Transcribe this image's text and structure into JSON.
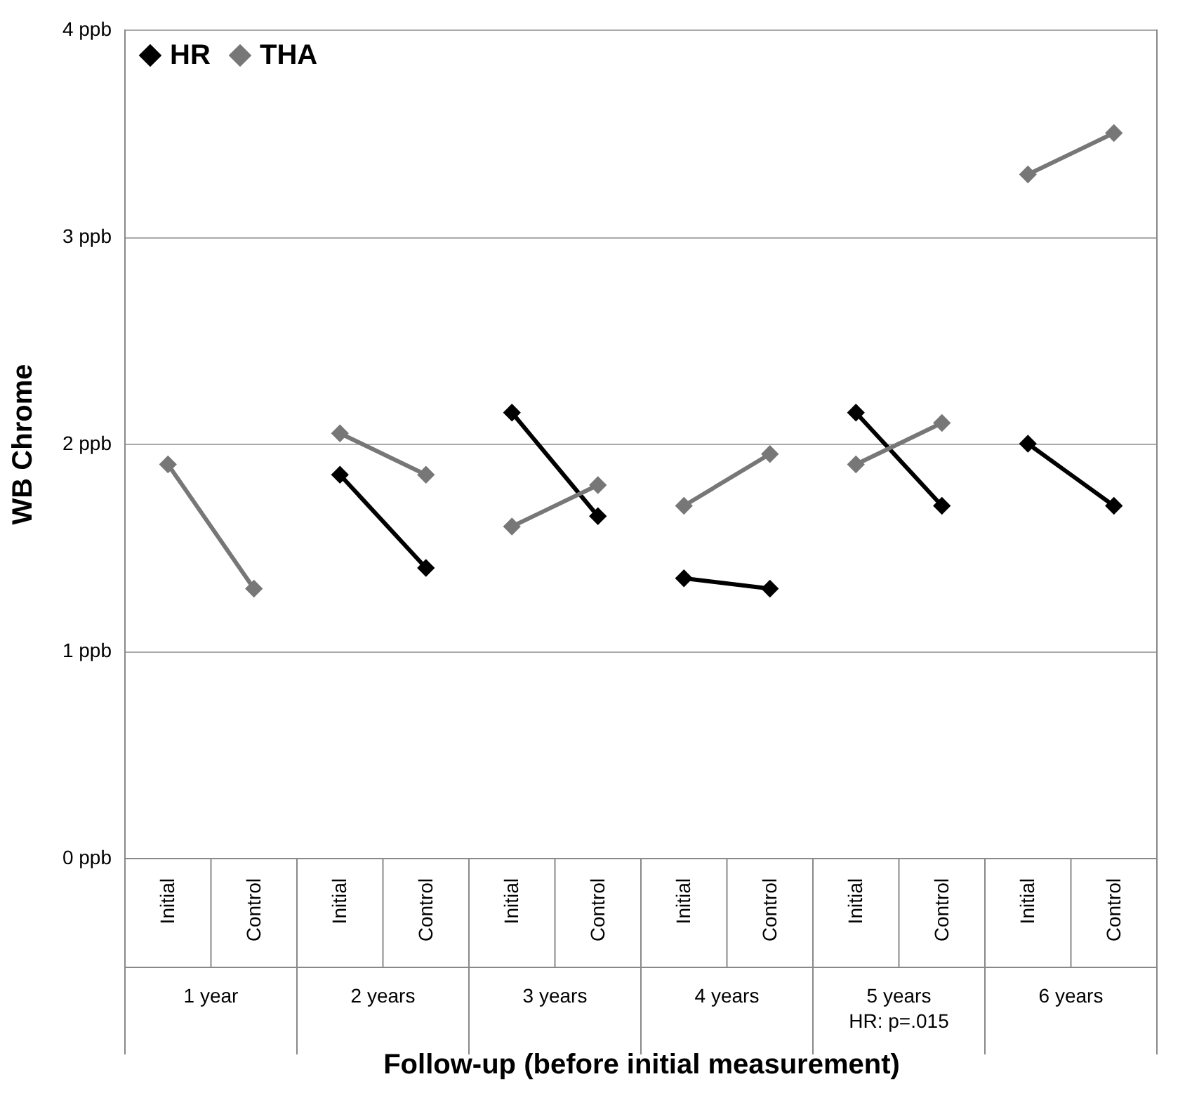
{
  "chart_data": {
    "type": "line",
    "xlabel": "Follow-up (before initial measurement)",
    "ylabel": "WB Chrome",
    "categories": [
      "Initial",
      "Control",
      "Initial",
      "Control",
      "Initial",
      "Control",
      "Initial",
      "Control",
      "Initial",
      "Control",
      "Initial",
      "Control"
    ],
    "series": [
      {
        "name": "HR",
        "color": "#000000",
        "values": [
          null,
          null,
          1.85,
          1.4,
          2.15,
          1.65,
          1.35,
          1.3,
          2.15,
          1.7,
          2.0,
          1.7
        ]
      },
      {
        "name": "THA",
        "color": "#777777",
        "values": [
          1.9,
          1.3,
          2.05,
          1.85,
          1.6,
          1.8,
          1.7,
          1.95,
          1.9,
          2.1,
          3.3,
          3.5
        ]
      }
    ],
    "annotations": [
      "1 year",
      "2 years",
      "3 years",
      "4 years",
      "5 years\nHR: p=.015",
      "6 years"
    ],
    "ylim": [
      0,
      4
    ],
    "yticks": [
      {
        "value": 0,
        "label": "0 ppb"
      },
      {
        "value": 1,
        "label": "1 ppb"
      },
      {
        "value": 2,
        "label": "2 ppb"
      },
      {
        "value": 3,
        "label": "3 ppb"
      },
      {
        "value": 4,
        "label": "4 ppb"
      }
    ],
    "grid": "y",
    "legend": "top left",
    "marker": "diamond",
    "line_style": "solid"
  }
}
